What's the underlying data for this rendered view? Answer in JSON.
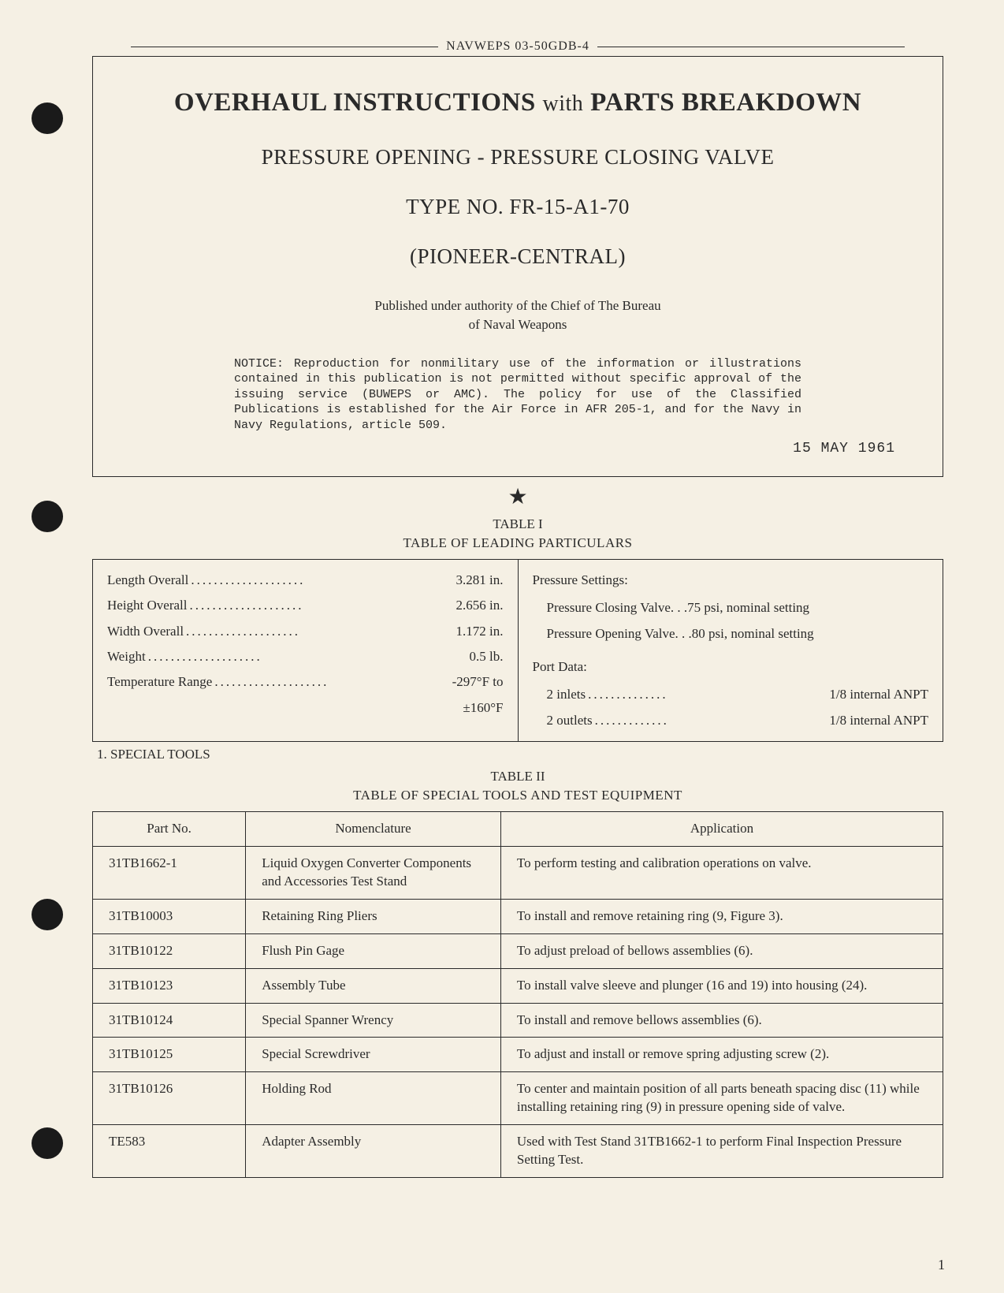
{
  "header": {
    "doc_id": "NAVWEPS 03-50GDB-4"
  },
  "title_block": {
    "main_title_1": "OVERHAUL INSTRUCTIONS",
    "main_title_with": "with",
    "main_title_2": "PARTS BREAKDOWN",
    "subtitle": "PRESSURE OPENING - PRESSURE CLOSING VALVE",
    "type_no": "TYPE NO. FR-15-A1-70",
    "company": "(PIONEER-CENTRAL)",
    "authority_1": "Published under authority of the Chief of The Bureau",
    "authority_2": "of Naval Weapons",
    "notice": "NOTICE: Reproduction for nonmilitary use of the information or illustrations contained in this publication is not permitted without specific approval of the issuing service (BUWEPS or AMC). The policy for use of the Classified Publications is established for the Air Force in AFR 205-1, and for the Navy in Navy Regulations, article 509.",
    "date": "15 MAY 1961"
  },
  "table1": {
    "label": "TABLE I",
    "title": "TABLE OF LEADING PARTICULARS",
    "left_rows": [
      {
        "label": "Length Overall",
        "value": "3.281 in."
      },
      {
        "label": "Height Overall",
        "value": "2.656 in."
      },
      {
        "label": "Width Overall",
        "value": "1.172 in."
      },
      {
        "label": "Weight",
        "value": "0.5 lb."
      },
      {
        "label": "Temperature Range",
        "value": "-297°F to"
      }
    ],
    "temp_line2": "±160°F",
    "right": {
      "pressure_head": "Pressure Settings:",
      "pressure_closing_label": "Pressure Closing Valve",
      "pressure_closing_value": "75 psi, nominal setting",
      "pressure_opening_label": "Pressure Opening Valve",
      "pressure_opening_value": "80 psi, nominal setting",
      "port_head": "Port Data:",
      "inlets_label": "2 inlets",
      "inlets_value": "1/8 internal ANPT",
      "outlets_label": "2 outlets",
      "outlets_value": "1/8 internal ANPT"
    }
  },
  "section1": "1. SPECIAL TOOLS",
  "table2": {
    "label": "TABLE II",
    "title": "TABLE OF SPECIAL TOOLS AND TEST EQUIPMENT",
    "headers": {
      "part": "Part No.",
      "nom": "Nomenclature",
      "app": "Application"
    },
    "rows": [
      {
        "part": "31TB1662-1",
        "nom": "Liquid Oxygen Converter Components and Accessories Test Stand",
        "app": "To perform testing and calibration operations on valve."
      },
      {
        "part": "31TB10003",
        "nom": "Retaining Ring Pliers",
        "app": "To install and remove retaining ring (9, Figure 3)."
      },
      {
        "part": "31TB10122",
        "nom": "Flush Pin Gage",
        "app": "To adjust preload of bellows assemblies (6)."
      },
      {
        "part": "31TB10123",
        "nom": "Assembly Tube",
        "app": "To install valve sleeve and plunger (16 and 19) into housing (24)."
      },
      {
        "part": "31TB10124",
        "nom": "Special Spanner Wrency",
        "app": "To install and remove bellows assemblies (6)."
      },
      {
        "part": "31TB10125",
        "nom": "Special Screwdriver",
        "app": "To adjust and install or remove spring adjusting screw (2)."
      },
      {
        "part": "31TB10126",
        "nom": "Holding Rod",
        "app": "To center and maintain position of all parts beneath spacing disc (11) while installing retaining ring (9) in pressure opening side of valve."
      },
      {
        "part": "TE583",
        "nom": "Adapter Assembly",
        "app": "Used with Test Stand 31TB1662-1 to perform Final Inspection Pressure Setting Test."
      }
    ]
  },
  "page_number": "1"
}
